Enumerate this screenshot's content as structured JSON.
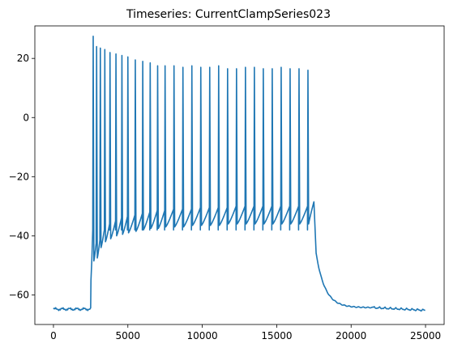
{
  "chart_data": {
    "type": "line",
    "title": "Timeseries: CurrentClampSeries023",
    "xlabel": "",
    "ylabel": "",
    "xlim": [
      -1250,
      26250
    ],
    "ylim": [
      -70,
      31
    ],
    "xticks": [
      0,
      5000,
      10000,
      15000,
      20000,
      25000
    ],
    "yticks": [
      -60,
      -40,
      -20,
      0,
      20
    ],
    "grid": false,
    "line_color": "#1f77b4",
    "baseline_before": {
      "x_start": 0,
      "x_end": 2500,
      "value": -64.8
    },
    "stimulus": {
      "x_start": 2500,
      "x_end": 17500
    },
    "spikes": [
      {
        "x": 2670,
        "peak": 27.5,
        "trough": -48.5
      },
      {
        "x": 2900,
        "peak": 24.0,
        "trough": -47.5
      },
      {
        "x": 3150,
        "peak": 23.5,
        "trough": -44.0
      },
      {
        "x": 3450,
        "peak": 23.0,
        "trough": -42.0
      },
      {
        "x": 3800,
        "peak": 22.0,
        "trough": -41.0
      },
      {
        "x": 4200,
        "peak": 21.5,
        "trough": -40.0
      },
      {
        "x": 4600,
        "peak": 21.0,
        "trough": -39.5
      },
      {
        "x": 5000,
        "peak": 20.5,
        "trough": -39.0
      },
      {
        "x": 5500,
        "peak": 19.5,
        "trough": -38.5
      },
      {
        "x": 6000,
        "peak": 19.0,
        "trough": -38.0
      },
      {
        "x": 6500,
        "peak": 18.5,
        "trough": -37.5
      },
      {
        "x": 7000,
        "peak": 17.5,
        "trough": -37.5
      },
      {
        "x": 7500,
        "peak": 17.5,
        "trough": -37.0
      },
      {
        "x": 8100,
        "peak": 17.5,
        "trough": -37.0
      },
      {
        "x": 8700,
        "peak": 17.0,
        "trough": -37.0
      },
      {
        "x": 9300,
        "peak": 17.5,
        "trough": -36.5
      },
      {
        "x": 9900,
        "peak": 17.0,
        "trough": -36.5
      },
      {
        "x": 10500,
        "peak": 17.0,
        "trough": -36.5
      },
      {
        "x": 11100,
        "peak": 17.5,
        "trough": -36.5
      },
      {
        "x": 11700,
        "peak": 16.5,
        "trough": -36.0
      },
      {
        "x": 12300,
        "peak": 16.5,
        "trough": -36.0
      },
      {
        "x": 12900,
        "peak": 17.0,
        "trough": -36.0
      },
      {
        "x": 13500,
        "peak": 17.0,
        "trough": -36.0
      },
      {
        "x": 14100,
        "peak": 16.5,
        "trough": -36.0
      },
      {
        "x": 14700,
        "peak": 16.5,
        "trough": -36.0
      },
      {
        "x": 15300,
        "peak": 17.0,
        "trough": -36.0
      },
      {
        "x": 15900,
        "peak": 16.5,
        "trough": -36.0
      },
      {
        "x": 16500,
        "peak": 16.5,
        "trough": -36.0
      },
      {
        "x": 17100,
        "peak": 16.0,
        "trough": -36.0
      }
    ],
    "end_of_stimulus": {
      "x": 17500,
      "value": -28.5
    },
    "recovery": {
      "x_start": 17650,
      "tau": 600,
      "settle_value": -64.3,
      "x_settle": 21500
    },
    "baseline_after": {
      "x_start": 21500,
      "x_end": 25000,
      "value_start": -64.3,
      "value_end": -65.2
    }
  }
}
